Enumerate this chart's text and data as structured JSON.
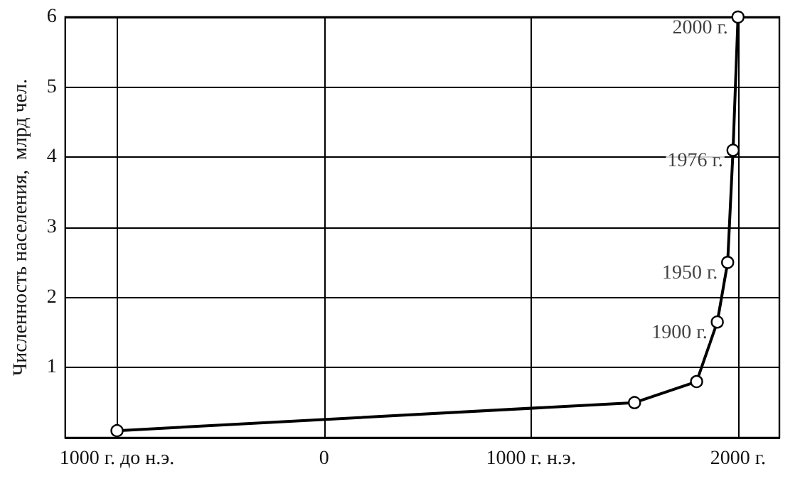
{
  "chart_data": {
    "type": "line",
    "ylabel": "Численность населения,  млрд чел.",
    "x": [
      -1000,
      1500,
      1800,
      1900,
      1950,
      1976,
      2000
    ],
    "series": [
      {
        "color": "#000000",
        "values": [
          0.1,
          0.5,
          0.8,
          1.65,
          2.5,
          4.1,
          6
        ]
      }
    ],
    "xlim": [
      -1250,
      2200
    ],
    "xticks": [
      {
        "value": -1000,
        "label": "1000 г. до н.э."
      },
      0,
      {
        "value": 1000,
        "label": "1000 г. н.э."
      },
      {
        "value": 2000,
        "label": "2000 г."
      }
    ],
    "ylim": [
      0,
      6
    ],
    "yticks": [
      {
        "value": 0,
        "label": null
      },
      1,
      2,
      3,
      4,
      5,
      6
    ],
    "annotations": [
      {
        "text": "1900 г.",
        "x": 1900,
        "y": 1.65
      },
      {
        "text": "1950 г.",
        "x": 1950,
        "y": 2.5
      },
      {
        "text": "1976 г.",
        "x": 1976,
        "y": 4.1
      },
      {
        "text": "2000 г.",
        "x": 2000,
        "y": 6
      }
    ],
    "grid": true,
    "marker": "circle",
    "line_style": "solid"
  }
}
